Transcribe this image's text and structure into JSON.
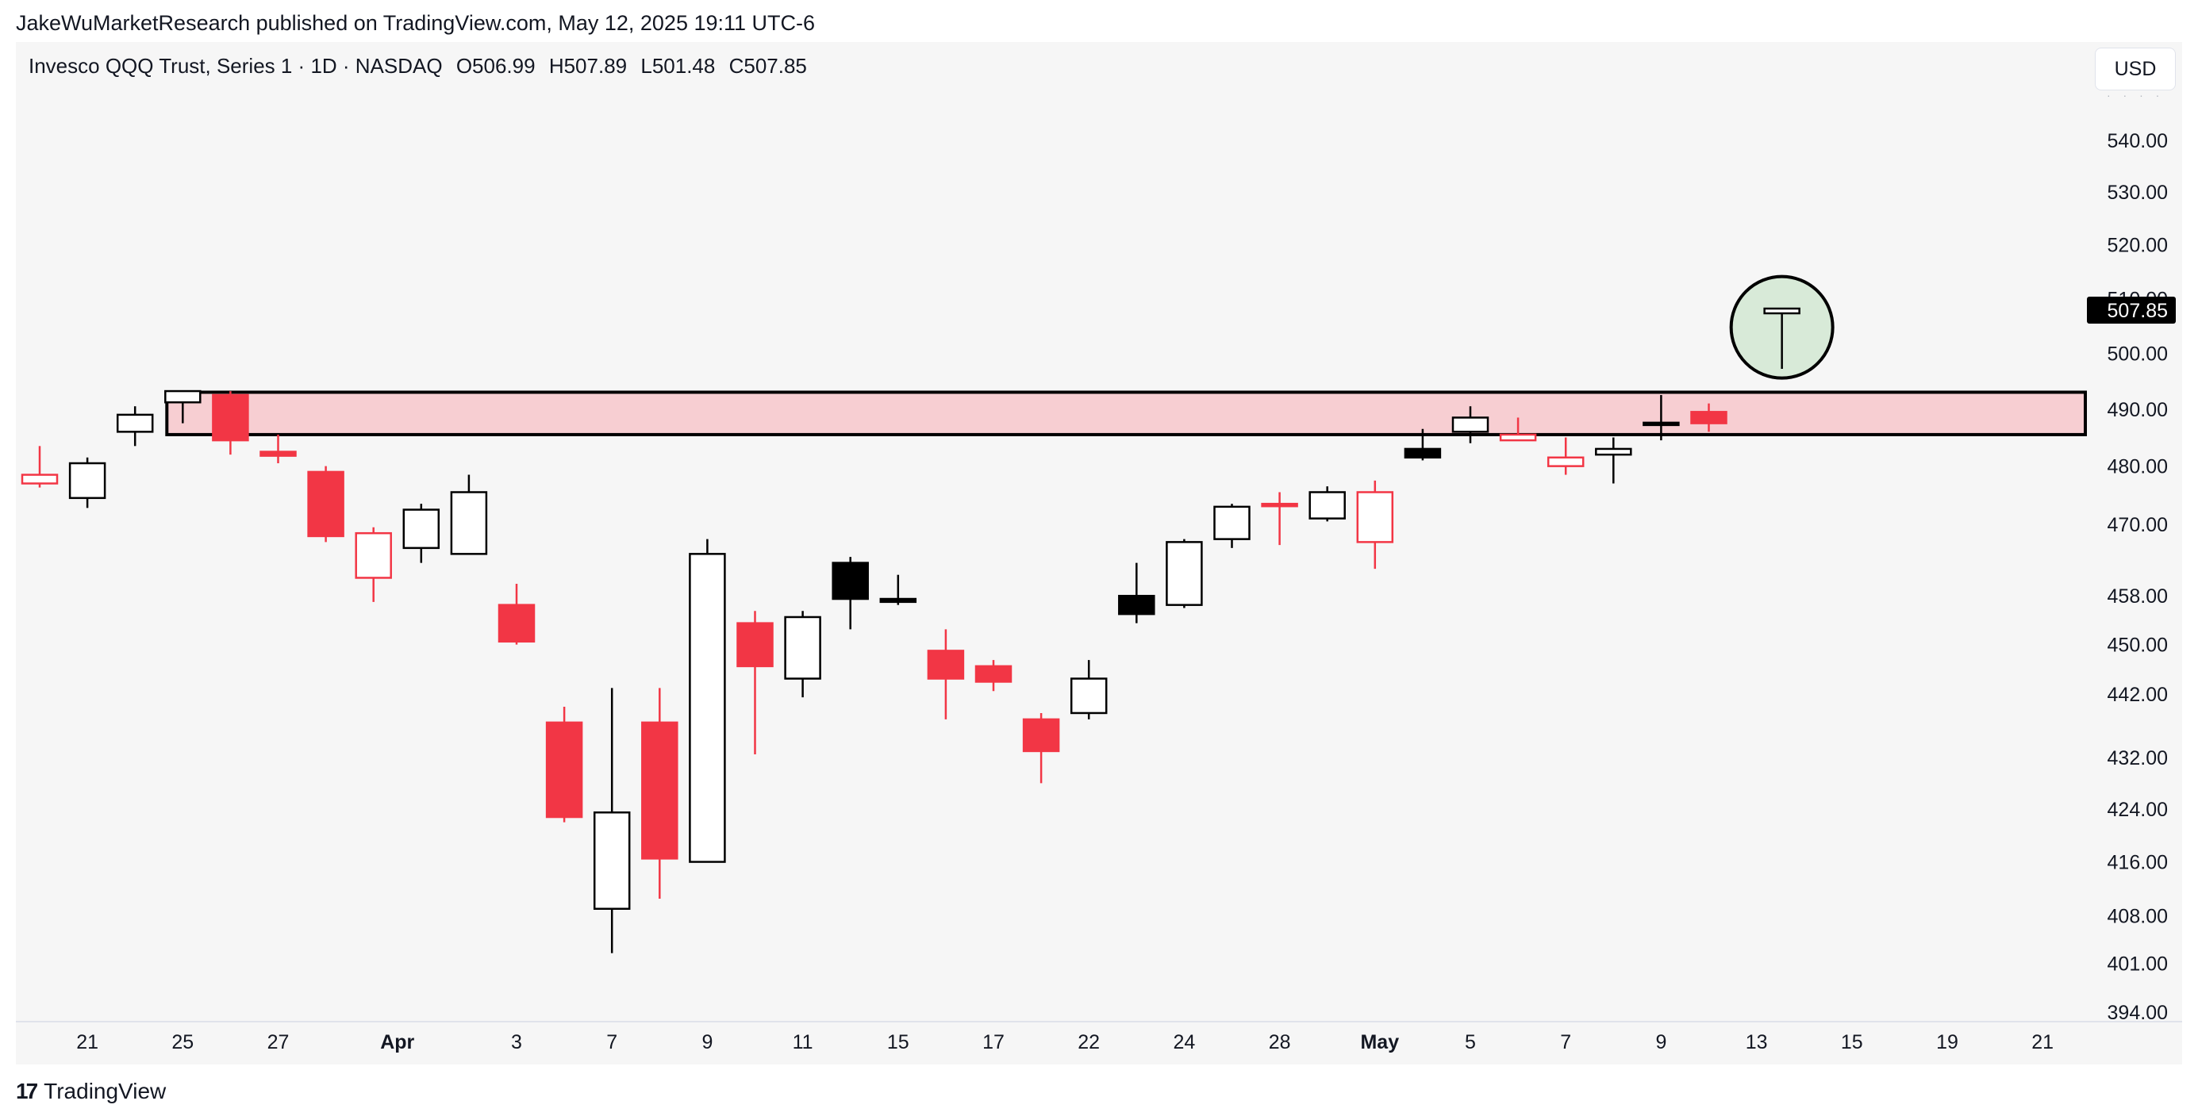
{
  "header": {
    "published": "JakeWuMarketResearch published on TradingView.com, May 12, 2025 19:11 UTC-6"
  },
  "legend": {
    "symbol": "Invesco QQQ Trust, Series 1 · 1D · NASDAQ",
    "open": "O506.99",
    "high": "H507.89",
    "low": "L501.48",
    "close": "C507.85"
  },
  "currency": "USD",
  "footer": {
    "logo_mark": "17",
    "brand": "TradingView"
  },
  "colors": {
    "up": "#ffffff",
    "up_border": "#000000",
    "down": "#f23645",
    "zone_fill": "#f7ced2",
    "marker_fill": "#d8ead8",
    "background": "#f6f6f6"
  },
  "chart_data": {
    "type": "candlestick",
    "title": "",
    "ylim": [
      394,
      545
    ],
    "y_scale": "log",
    "y_ticks": [
      "540.00",
      "530.00",
      "520.00",
      "510.00",
      "500.00",
      "490.00",
      "480.00",
      "470.00",
      "458.00",
      "450.00",
      "442.00",
      "432.00",
      "424.00",
      "416.00",
      "408.00",
      "401.00",
      "394.00"
    ],
    "last_price_label": "507.85",
    "x_ticks": [
      {
        "label": "21",
        "slot": 1,
        "bold": false
      },
      {
        "label": "25",
        "slot": 3,
        "bold": false
      },
      {
        "label": "27",
        "slot": 5,
        "bold": false
      },
      {
        "label": "Apr",
        "slot": 7.5,
        "bold": true
      },
      {
        "label": "3",
        "slot": 10,
        "bold": false
      },
      {
        "label": "7",
        "slot": 12,
        "bold": false
      },
      {
        "label": "9",
        "slot": 14,
        "bold": false
      },
      {
        "label": "11",
        "slot": 16,
        "bold": false
      },
      {
        "label": "15",
        "slot": 18,
        "bold": false
      },
      {
        "label": "17",
        "slot": 20,
        "bold": false
      },
      {
        "label": "22",
        "slot": 22,
        "bold": false
      },
      {
        "label": "24",
        "slot": 24,
        "bold": false
      },
      {
        "label": "28",
        "slot": 26,
        "bold": false
      },
      {
        "label": "May",
        "slot": 28.1,
        "bold": true
      },
      {
        "label": "5",
        "slot": 30,
        "bold": false
      },
      {
        "label": "7",
        "slot": 32,
        "bold": false
      },
      {
        "label": "9",
        "slot": 34,
        "bold": false
      },
      {
        "label": "13",
        "slot": 36,
        "bold": false
      },
      {
        "label": "15",
        "slot": 38,
        "bold": false
      },
      {
        "label": "19",
        "slot": 40,
        "bold": false
      },
      {
        "label": "21",
        "slot": 42,
        "bold": false
      }
    ],
    "candles": [
      {
        "date": "Mar 20",
        "o": 478.5,
        "h": 483.5,
        "l": 476.3,
        "c": 477.0,
        "style": "red-hollow"
      },
      {
        "date": "Mar 21",
        "o": 474.5,
        "h": 481.5,
        "l": 472.8,
        "c": 480.5,
        "style": "white"
      },
      {
        "date": "Mar 24",
        "o": 486.0,
        "h": 490.5,
        "l": 483.5,
        "c": 489.0,
        "style": "white"
      },
      {
        "date": "Mar 25",
        "o": 491.2,
        "h": 493.0,
        "l": 487.5,
        "c": 493.2,
        "style": "white"
      },
      {
        "date": "Mar 26",
        "o": 492.5,
        "h": 493.2,
        "l": 482.0,
        "c": 484.5,
        "style": "red"
      },
      {
        "date": "Mar 27",
        "o": 482.5,
        "h": 485.5,
        "l": 480.5,
        "c": 481.8,
        "style": "red"
      },
      {
        "date": "Mar 28",
        "o": 479.0,
        "h": 480.0,
        "l": 467.0,
        "c": 468.0,
        "style": "red"
      },
      {
        "date": "Mar 31",
        "o": 461.0,
        "h": 469.5,
        "l": 457.0,
        "c": 468.5,
        "style": "red-hollow"
      },
      {
        "date": "Apr 1",
        "o": 466.0,
        "h": 473.5,
        "l": 463.5,
        "c": 472.5,
        "style": "white"
      },
      {
        "date": "Apr 2",
        "o": 465.0,
        "h": 478.5,
        "l": 465.0,
        "c": 475.5,
        "style": "white"
      },
      {
        "date": "Apr 3",
        "o": 456.5,
        "h": 460.0,
        "l": 450.0,
        "c": 450.5,
        "style": "red"
      },
      {
        "date": "Apr 4",
        "o": 437.5,
        "h": 440.0,
        "l": 422.0,
        "c": 422.8,
        "style": "red"
      },
      {
        "date": "Apr 7",
        "o": 409.0,
        "h": 443.0,
        "l": 402.5,
        "c": 423.5,
        "style": "white"
      },
      {
        "date": "Apr 8",
        "o": 437.5,
        "h": 443.0,
        "l": 410.5,
        "c": 416.5,
        "style": "red"
      },
      {
        "date": "Apr 9",
        "o": 416.0,
        "h": 467.5,
        "l": 416.0,
        "c": 465.0,
        "style": "white"
      },
      {
        "date": "Apr 10",
        "o": 453.5,
        "h": 455.5,
        "l": 432.5,
        "c": 446.5,
        "style": "red"
      },
      {
        "date": "Apr 11",
        "o": 444.5,
        "h": 455.5,
        "l": 441.5,
        "c": 454.5,
        "style": "white"
      },
      {
        "date": "Apr 14",
        "o": 457.5,
        "h": 464.5,
        "l": 452.5,
        "c": 463.5,
        "style": "black"
      },
      {
        "date": "Apr 15",
        "o": 457.0,
        "h": 461.5,
        "l": 456.5,
        "c": 457.5,
        "style": "black"
      },
      {
        "date": "Apr 16",
        "o": 449.0,
        "h": 452.5,
        "l": 438.0,
        "c": 444.5,
        "style": "red"
      },
      {
        "date": "Apr 17",
        "o": 446.5,
        "h": 447.5,
        "l": 442.5,
        "c": 444.0,
        "style": "red"
      },
      {
        "date": "Apr 21",
        "o": 438.0,
        "h": 439.0,
        "l": 428.0,
        "c": 433.0,
        "style": "red"
      },
      {
        "date": "Apr 22",
        "o": 439.0,
        "h": 447.5,
        "l": 438.0,
        "c": 444.5,
        "style": "white"
      },
      {
        "date": "Apr 23",
        "o": 455.0,
        "h": 463.5,
        "l": 453.5,
        "c": 458.0,
        "style": "black"
      },
      {
        "date": "Apr 24",
        "o": 456.5,
        "h": 467.5,
        "l": 456.0,
        "c": 467.0,
        "style": "white"
      },
      {
        "date": "Apr 25",
        "o": 467.5,
        "h": 473.5,
        "l": 466.0,
        "c": 473.0,
        "style": "white"
      },
      {
        "date": "Apr 28",
        "o": 473.5,
        "h": 475.5,
        "l": 466.5,
        "c": 473.2,
        "style": "red"
      },
      {
        "date": "Apr 29",
        "o": 471.0,
        "h": 476.5,
        "l": 470.5,
        "c": 475.5,
        "style": "white"
      },
      {
        "date": "Apr 30",
        "o": 475.5,
        "h": 477.5,
        "l": 462.5,
        "c": 467.0,
        "style": "red-hollow"
      },
      {
        "date": "May 1",
        "o": 481.5,
        "h": 486.5,
        "l": 481.0,
        "c": 483.0,
        "style": "black"
      },
      {
        "date": "May 2",
        "o": 486.0,
        "h": 490.5,
        "l": 484.0,
        "c": 488.5,
        "style": "white"
      },
      {
        "date": "May 5",
        "o": 485.5,
        "h": 488.5,
        "l": 484.5,
        "c": 484.5,
        "style": "red-hollow"
      },
      {
        "date": "May 6",
        "o": 481.5,
        "h": 485.0,
        "l": 478.5,
        "c": 480.0,
        "style": "red-hollow"
      },
      {
        "date": "May 7",
        "o": 482.0,
        "h": 485.0,
        "l": 477.0,
        "c": 483.0,
        "style": "white"
      },
      {
        "date": "May 8",
        "o": 487.5,
        "h": 492.5,
        "l": 484.5,
        "c": 487.6,
        "style": "black"
      },
      {
        "date": "May 9",
        "o": 489.5,
        "h": 491.0,
        "l": 486.0,
        "c": 487.5,
        "style": "red"
      },
      {
        "date": "May 12",
        "o": 506.99,
        "h": 507.89,
        "l": 501.48,
        "c": 507.85,
        "style": "white"
      }
    ],
    "zone": {
      "from_slot": 3.0,
      "top": 493.0,
      "bottom": 485.5
    },
    "highlight_marker": {
      "slot": 36.5,
      "price": 505.0
    }
  }
}
